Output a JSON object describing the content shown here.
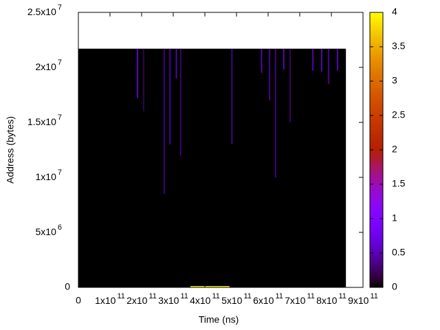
{
  "chart_data": {
    "type": "heatmap",
    "x_label": "Time (ns)",
    "y_label": "Address (bytes)",
    "xlim": [
      0,
      900000000000
    ],
    "ylim": [
      0,
      25000000
    ],
    "cblim": [
      0,
      4
    ],
    "xticks": [
      0,
      {
        "value": 100000000000,
        "label": "1x10",
        "exponent": "11"
      },
      {
        "value": 200000000000,
        "label": "2x10",
        "exponent": "11"
      },
      {
        "value": 300000000000,
        "label": "3x10",
        "exponent": "11"
      },
      {
        "value": 400000000000,
        "label": "4x10",
        "exponent": "11"
      },
      {
        "value": 500000000000,
        "label": "5x10",
        "exponent": "11"
      },
      {
        "value": 600000000000,
        "label": "6x10",
        "exponent": "11"
      },
      {
        "value": 700000000000,
        "label": "7x10",
        "exponent": "11"
      },
      {
        "value": 800000000000,
        "label": "8x10",
        "exponent": "11"
      },
      {
        "value": 900000000000,
        "label": "9x10",
        "exponent": "11"
      }
    ],
    "yticks": [
      0,
      {
        "value": 5000000,
        "label": "5x10",
        "exponent": "6"
      },
      {
        "value": 10000000,
        "label": "1x10",
        "exponent": "7"
      },
      {
        "value": 15000000,
        "label": "1.5x10",
        "exponent": "7"
      },
      {
        "value": 20000000,
        "label": "2x10",
        "exponent": "7"
      },
      {
        "value": 25000000,
        "label": "2.5x10",
        "exponent": "7"
      }
    ],
    "cbticks": [
      0,
      0.5,
      1,
      1.5,
      2,
      2.5,
      3,
      3.5,
      4
    ],
    "cells": [
      {
        "x0": 0,
        "x1": 846000000000,
        "y0": 0,
        "y1": 21700000,
        "value": 0
      },
      {
        "x0": 185000000000,
        "x1": 189000000000,
        "y0": 17200000,
        "y1": 21700000,
        "value": 0.6
      },
      {
        "x0": 205000000000,
        "x1": 208000000000,
        "y0": 16000000,
        "y1": 21700000,
        "value": 0.3
      },
      {
        "x0": 270000000000,
        "x1": 273000000000,
        "y0": 8500000,
        "y1": 21700000,
        "value": 0.5
      },
      {
        "x0": 288000000000,
        "x1": 291000000000,
        "y0": 13000000,
        "y1": 21700000,
        "value": 0.6
      },
      {
        "x0": 308000000000,
        "x1": 311000000000,
        "y0": 19000000,
        "y1": 21700000,
        "value": 0.7
      },
      {
        "x0": 322000000000,
        "x1": 325000000000,
        "y0": 12000000,
        "y1": 21700000,
        "value": 0.4
      },
      {
        "x0": 484000000000,
        "x1": 487000000000,
        "y0": 13000000,
        "y1": 21700000,
        "value": 0.5
      },
      {
        "x0": 578000000000,
        "x1": 581000000000,
        "y0": 19500000,
        "y1": 21700000,
        "value": 0.8
      },
      {
        "x0": 603000000000,
        "x1": 606000000000,
        "y0": 17000000,
        "y1": 21700000,
        "value": 0.6
      },
      {
        "x0": 622000000000,
        "x1": 625000000000,
        "y0": 10000000,
        "y1": 21700000,
        "value": 0.5
      },
      {
        "x0": 648000000000,
        "x1": 651000000000,
        "y0": 19800000,
        "y1": 21700000,
        "value": 0.9
      },
      {
        "x0": 668000000000,
        "x1": 671000000000,
        "y0": 15000000,
        "y1": 21700000,
        "value": 0.4
      },
      {
        "x0": 740000000000,
        "x1": 743000000000,
        "y0": 19700000,
        "y1": 21700000,
        "value": 0.8
      },
      {
        "x0": 768000000000,
        "x1": 771000000000,
        "y0": 19600000,
        "y1": 21700000,
        "value": 0.9
      },
      {
        "x0": 790000000000,
        "x1": 793000000000,
        "y0": 18500000,
        "y1": 21700000,
        "value": 0.6
      },
      {
        "x0": 818000000000,
        "x1": 821000000000,
        "y0": 19700000,
        "y1": 21700000,
        "value": 0.9
      },
      {
        "x0": 354000000000,
        "x1": 478000000000,
        "y0": 0,
        "y1": 120000,
        "value": 4
      }
    ]
  }
}
